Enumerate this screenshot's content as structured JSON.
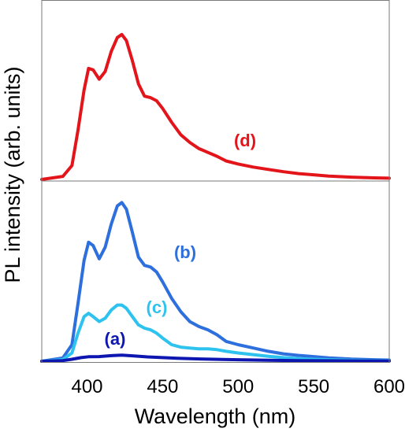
{
  "chart_data": {
    "type": "line",
    "title": "",
    "xlabel": "Wavelength (nm)",
    "ylabel": "PL intensity (arb. units)",
    "xlim": [
      370,
      600
    ],
    "xticks": [
      400,
      450,
      500,
      550,
      600
    ],
    "ylim": [
      0,
      1.0
    ],
    "y_tick_labels_shown": false,
    "grid": false,
    "legend": "none",
    "panels": [
      "upper",
      "lower"
    ],
    "series": [
      {
        "name": "(d)",
        "panel": "upper",
        "color": "#e3151b",
        "points": [
          [
            370,
            0.0
          ],
          [
            384,
            0.02
          ],
          [
            390,
            0.09
          ],
          [
            394,
            0.32
          ],
          [
            398,
            0.58
          ],
          [
            401,
            0.72
          ],
          [
            404,
            0.71
          ],
          [
            408,
            0.65
          ],
          [
            412,
            0.7
          ],
          [
            416,
            0.83
          ],
          [
            420,
            0.92
          ],
          [
            423,
            0.94
          ],
          [
            426,
            0.9
          ],
          [
            430,
            0.77
          ],
          [
            434,
            0.62
          ],
          [
            438,
            0.54
          ],
          [
            442,
            0.53
          ],
          [
            446,
            0.51
          ],
          [
            450,
            0.46
          ],
          [
            456,
            0.37
          ],
          [
            462,
            0.29
          ],
          [
            468,
            0.24
          ],
          [
            474,
            0.2
          ],
          [
            480,
            0.175
          ],
          [
            486,
            0.15
          ],
          [
            492,
            0.12
          ],
          [
            500,
            0.1
          ],
          [
            510,
            0.08
          ],
          [
            520,
            0.065
          ],
          [
            530,
            0.05
          ],
          [
            540,
            0.038
          ],
          [
            550,
            0.03
          ],
          [
            560,
            0.022
          ],
          [
            575,
            0.015
          ],
          [
            590,
            0.01
          ],
          [
            600,
            0.008
          ]
        ]
      },
      {
        "name": "(b)",
        "panel": "lower",
        "color": "#2e6fde",
        "points": [
          [
            370,
            0.0
          ],
          [
            384,
            0.02
          ],
          [
            390,
            0.1
          ],
          [
            394,
            0.35
          ],
          [
            398,
            0.61
          ],
          [
            401,
            0.72
          ],
          [
            404,
            0.7
          ],
          [
            408,
            0.62
          ],
          [
            412,
            0.69
          ],
          [
            416,
            0.83
          ],
          [
            420,
            0.94
          ],
          [
            423,
            0.96
          ],
          [
            426,
            0.92
          ],
          [
            430,
            0.78
          ],
          [
            434,
            0.63
          ],
          [
            438,
            0.58
          ],
          [
            442,
            0.57
          ],
          [
            446,
            0.54
          ],
          [
            450,
            0.48
          ],
          [
            456,
            0.38
          ],
          [
            462,
            0.3
          ],
          [
            468,
            0.24
          ],
          [
            474,
            0.21
          ],
          [
            480,
            0.19
          ],
          [
            486,
            0.16
          ],
          [
            492,
            0.12
          ],
          [
            500,
            0.1
          ],
          [
            510,
            0.08
          ],
          [
            520,
            0.06
          ],
          [
            530,
            0.045
          ],
          [
            540,
            0.035
          ],
          [
            550,
            0.028
          ],
          [
            560,
            0.02
          ],
          [
            575,
            0.013
          ],
          [
            590,
            0.009
          ],
          [
            600,
            0.007
          ]
        ]
      },
      {
        "name": "(c)",
        "panel": "lower",
        "color": "#2ec3ee",
        "points": [
          [
            370,
            0.0
          ],
          [
            384,
            0.01
          ],
          [
            390,
            0.05
          ],
          [
            394,
            0.17
          ],
          [
            398,
            0.27
          ],
          [
            401,
            0.29
          ],
          [
            404,
            0.27
          ],
          [
            408,
            0.24
          ],
          [
            412,
            0.26
          ],
          [
            416,
            0.31
          ],
          [
            420,
            0.34
          ],
          [
            423,
            0.34
          ],
          [
            426,
            0.32
          ],
          [
            430,
            0.27
          ],
          [
            434,
            0.22
          ],
          [
            438,
            0.2
          ],
          [
            442,
            0.19
          ],
          [
            446,
            0.17
          ],
          [
            450,
            0.14
          ],
          [
            456,
            0.1
          ],
          [
            462,
            0.085
          ],
          [
            468,
            0.08
          ],
          [
            474,
            0.075
          ],
          [
            480,
            0.075
          ],
          [
            486,
            0.07
          ],
          [
            492,
            0.06
          ],
          [
            500,
            0.05
          ],
          [
            510,
            0.04
          ],
          [
            520,
            0.03
          ],
          [
            530,
            0.022
          ],
          [
            540,
            0.016
          ],
          [
            550,
            0.012
          ],
          [
            560,
            0.009
          ],
          [
            575,
            0.006
          ],
          [
            590,
            0.004
          ],
          [
            600,
            0.003
          ]
        ]
      },
      {
        "name": "(a)",
        "panel": "lower",
        "color": "#0d16b0",
        "points": [
          [
            370,
            0.0
          ],
          [
            384,
            0.004
          ],
          [
            390,
            0.012
          ],
          [
            396,
            0.022
          ],
          [
            401,
            0.027
          ],
          [
            408,
            0.028
          ],
          [
            416,
            0.034
          ],
          [
            423,
            0.037
          ],
          [
            430,
            0.033
          ],
          [
            440,
            0.026
          ],
          [
            450,
            0.022
          ],
          [
            460,
            0.018
          ],
          [
            475,
            0.014
          ],
          [
            490,
            0.011
          ],
          [
            500,
            0.009
          ],
          [
            520,
            0.006
          ],
          [
            540,
            0.004
          ],
          [
            560,
            0.003
          ],
          [
            580,
            0.002
          ],
          [
            600,
            0.001
          ]
        ]
      }
    ]
  }
}
